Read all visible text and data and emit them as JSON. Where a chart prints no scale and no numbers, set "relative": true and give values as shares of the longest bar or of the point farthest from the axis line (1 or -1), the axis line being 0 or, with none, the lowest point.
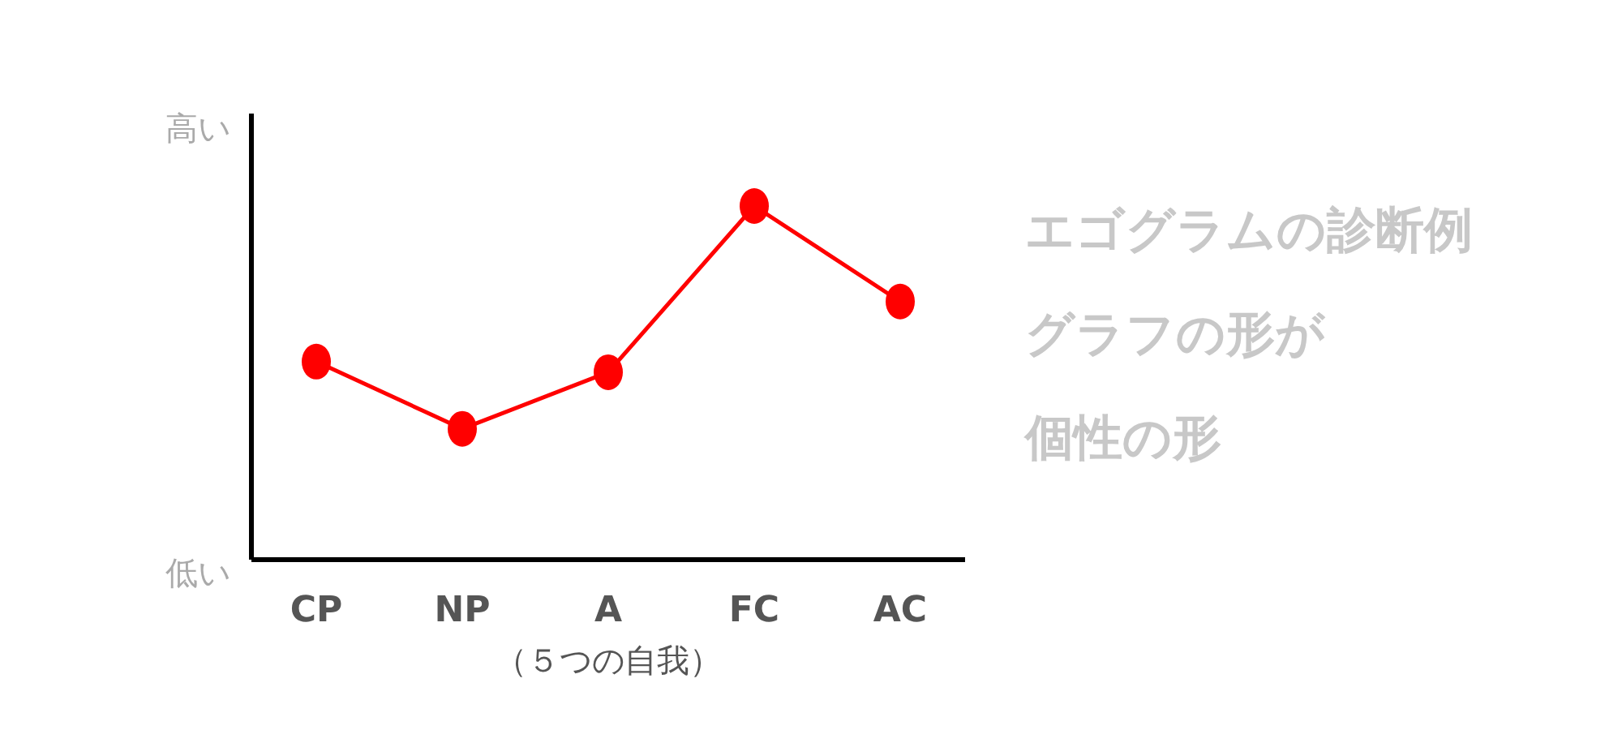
{
  "chart_data": {
    "type": "line",
    "relative": true,
    "xlabel": "（５つの自我）",
    "categories": [
      "CP",
      "NP",
      "A",
      "FC",
      "AC"
    ],
    "series": [
      {
        "color": "#ff0000",
        "values": [
          0.56,
          0.37,
          0.53,
          1,
          0.73
        ]
      }
    ],
    "marker": "circle",
    "line_style": "solid",
    "annotations": [
      "高い",
      "低い",
      "エゴグラムの診断例",
      "グラフの形が",
      "個性の形"
    ]
  }
}
